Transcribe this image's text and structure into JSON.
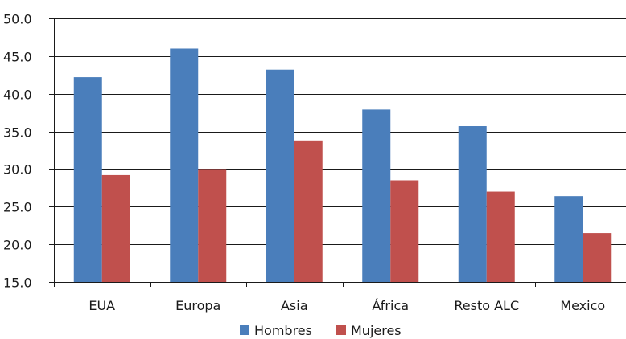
{
  "chart_data": {
    "type": "bar",
    "categories": [
      "EUA",
      "Europa",
      "Asia",
      "África",
      "Resto ALC",
      "Mexico"
    ],
    "series": [
      {
        "name": "Hombres",
        "color": "#4a7ebb",
        "values": [
          42.2,
          46.0,
          43.2,
          37.9,
          35.7,
          26.4
        ]
      },
      {
        "name": "Mujeres",
        "color": "#c0504d",
        "values": [
          29.2,
          30.0,
          33.8,
          28.5,
          27.0,
          21.5
        ]
      }
    ],
    "ylim": [
      15.0,
      50.0
    ],
    "yticks": [
      "15.0",
      "20.0",
      "25.0",
      "30.0",
      "35.0",
      "40.0",
      "45.0",
      "50.0"
    ],
    "grid": "horizontal",
    "legend_position": "bottom"
  }
}
